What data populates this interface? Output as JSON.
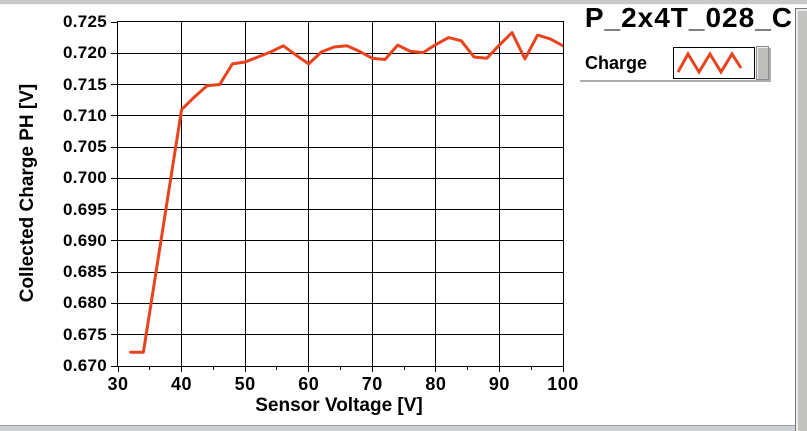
{
  "window": {
    "background": "#ffffff",
    "edge_color": "#c9c9c9"
  },
  "chart_data": {
    "type": "line",
    "title": "P_2x4T_028_C",
    "xlabel": "Sensor Voltage [V]",
    "ylabel": "Collected Charge PH [V]",
    "xlim": [
      30,
      100
    ],
    "ylim": [
      0.67,
      0.725
    ],
    "xticks": [
      30,
      40,
      50,
      60,
      70,
      80,
      90,
      100
    ],
    "yticks": [
      0.67,
      0.675,
      0.68,
      0.685,
      0.69,
      0.695,
      0.7,
      0.705,
      0.71,
      0.715,
      0.72,
      0.725
    ],
    "ytick_decimals": 3,
    "grid": true,
    "x_minor_ticks": true,
    "legend": {
      "position": "top-right",
      "entries": [
        {
          "label": "Charge",
          "color": "#e8431c",
          "style": "zigzag-line-sample"
        }
      ]
    },
    "series": [
      {
        "name": "Charge",
        "color": "#e8431c",
        "line_width": 3,
        "x": [
          32,
          34,
          36,
          38,
          40,
          42,
          44,
          46,
          48,
          50,
          52,
          54,
          56,
          58,
          60,
          62,
          64,
          66,
          68,
          70,
          72,
          74,
          76,
          78,
          80,
          82,
          84,
          86,
          88,
          90,
          92,
          94,
          96,
          98,
          100
        ],
        "y": [
          0.6722,
          0.6722,
          0.6851,
          0.6981,
          0.711,
          0.713,
          0.7148,
          0.715,
          0.7183,
          0.7186,
          0.7194,
          0.7202,
          0.7212,
          0.7197,
          0.7183,
          0.7202,
          0.721,
          0.7212,
          0.7203,
          0.7192,
          0.719,
          0.7213,
          0.7203,
          0.7201,
          0.7214,
          0.7225,
          0.722,
          0.7194,
          0.7192,
          0.7213,
          0.7233,
          0.7191,
          0.7229,
          0.7223,
          0.7212
        ]
      }
    ]
  }
}
